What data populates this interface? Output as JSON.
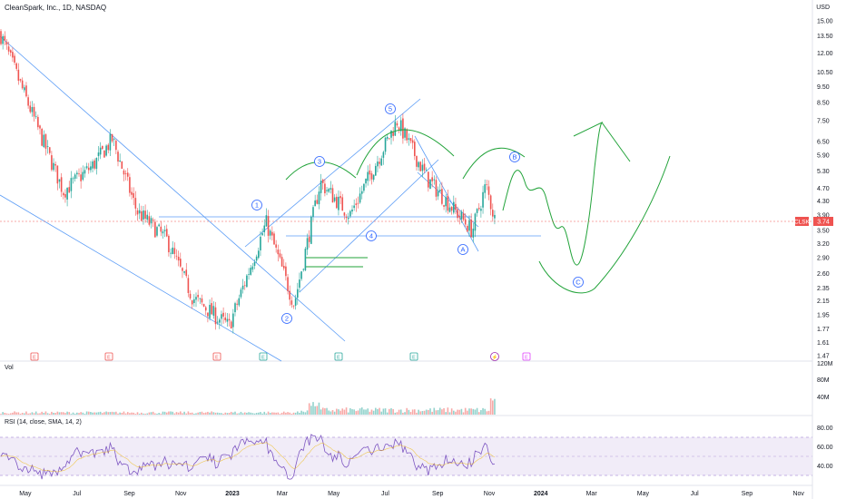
{
  "header": {
    "title": "CleanSpark, Inc., 1D, NASDAQ",
    "currency": "USD"
  },
  "price_axis": {
    "ticks": [
      "15.00",
      "13.50",
      "12.00",
      "10.50",
      "9.50",
      "8.50",
      "7.50",
      "6.50",
      "5.90",
      "5.30",
      "4.70",
      "4.30",
      "3.90",
      "3.50",
      "3.20",
      "2.90",
      "2.60",
      "2.35",
      "2.15",
      "1.95",
      "1.77",
      "1.61",
      "1.47"
    ],
    "current_ticker": "CLSK",
    "current_price": "3.74"
  },
  "time_axis": {
    "labels": [
      "May",
      "Jul",
      "Sep",
      "Nov",
      "2023",
      "Mar",
      "May",
      "Jul",
      "Sep",
      "Nov",
      "2024",
      "Mar",
      "May",
      "Jul",
      "Sep",
      "Nov"
    ]
  },
  "wave_labels": {
    "w1": "1",
    "w2": "2",
    "w3": "3",
    "w4": "4",
    "w5": "5",
    "wA": "A",
    "wB": "B",
    "wC": "C"
  },
  "event_markers": [
    "E",
    "E",
    "E",
    "E",
    "E",
    "E",
    "⚡",
    "E"
  ],
  "volume_panel": {
    "label": "Vol",
    "ticks": [
      "120M",
      "80M",
      "40M"
    ]
  },
  "rsi_panel": {
    "label": "RSI (14, close, SMA, 14, 2)",
    "ticks": [
      "80.00",
      "60.00",
      "40.00"
    ]
  },
  "colors": {
    "up": "#26a69a",
    "down": "#ef5350",
    "trendline": "#5b9cf6",
    "projection": "#22a33a",
    "rsi_line": "#7e57c2",
    "rsi_band": "#ede7f6",
    "price_label_bg": "#ef5350"
  },
  "chart_data": {
    "type": "candlestick",
    "title": "CleanSpark, Inc., 1D, NASDAQ",
    "y_scale": "log",
    "ylim": [
      1.47,
      15.0
    ],
    "last_close": 3.74,
    "price_path_keypoints": [
      {
        "date": "2022-04-01",
        "price": 13.8
      },
      {
        "date": "2022-05-15",
        "price": 7.2
      },
      {
        "date": "2022-06-15",
        "price": 4.6
      },
      {
        "date": "2022-07-20",
        "price": 5.5
      },
      {
        "date": "2022-08-12",
        "price": 6.6
      },
      {
        "date": "2022-09-10",
        "price": 4.0
      },
      {
        "date": "2022-10-15",
        "price": 3.3
      },
      {
        "date": "2022-11-15",
        "price": 2.2
      },
      {
        "date": "2022-12-28",
        "price": 1.8
      },
      {
        "date": "2023-02-10",
        "price": 3.7
      },
      {
        "date": "2023-03-15",
        "price": 2.1
      },
      {
        "date": "2023-04-15",
        "price": 4.9
      },
      {
        "date": "2023-05-20",
        "price": 3.9
      },
      {
        "date": "2023-07-15",
        "price": 7.5
      },
      {
        "date": "2023-08-20",
        "price": 5.0
      },
      {
        "date": "2023-10-12",
        "price": 3.5
      },
      {
        "date": "2023-10-28",
        "price": 4.8
      },
      {
        "date": "2023-11-08",
        "price": 3.74
      }
    ],
    "annotations": [
      "1",
      "2",
      "3",
      "4",
      "5",
      "A",
      "B",
      "C"
    ],
    "indicators": [
      "Vol",
      "RSI (14, close, SMA, 14, 2)"
    ],
    "grid": false
  }
}
